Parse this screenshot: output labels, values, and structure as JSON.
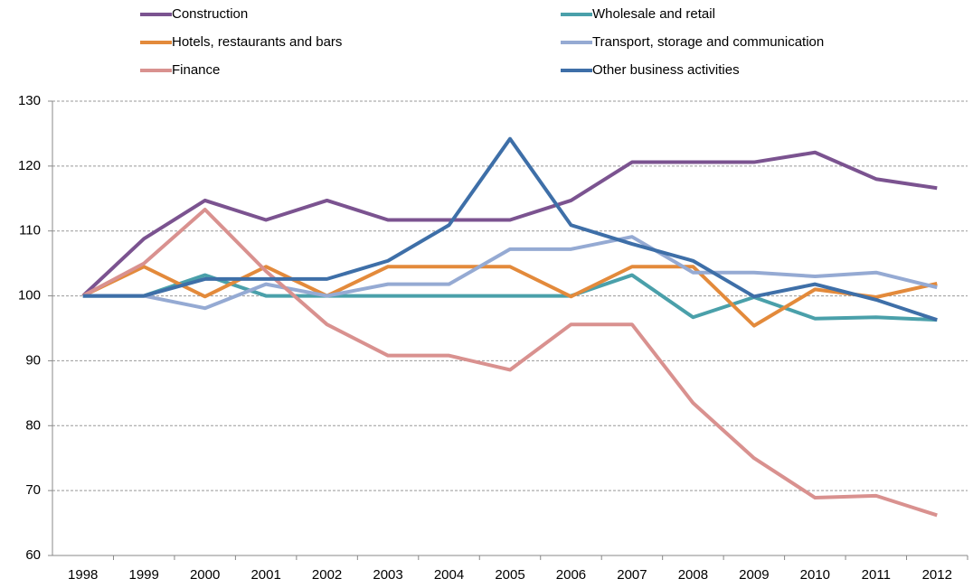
{
  "chart_data": {
    "type": "line",
    "categories": [
      "1998",
      "1999",
      "2000",
      "2001",
      "2002",
      "2003",
      "2004",
      "2005",
      "2006",
      "2007",
      "2008",
      "2009",
      "2010",
      "2011",
      "2012"
    ],
    "series": [
      {
        "name": "Construction",
        "color": "#7b5390",
        "values": [
          100,
          108.8,
          114.7,
          111.7,
          114.7,
          111.7,
          111.7,
          111.7,
          114.7,
          120.6,
          120.6,
          120.6,
          122.1,
          118,
          116.6
        ]
      },
      {
        "name": "Wholesale and retail",
        "color": "#4aa0aa",
        "values": [
          100,
          100,
          103.2,
          100,
          100,
          100,
          100,
          100,
          100,
          103.2,
          96.7,
          99.8,
          96.5,
          96.7,
          96.3
        ]
      },
      {
        "name": "Hotels, restaurants and bars",
        "color": "#e38a3b",
        "values": [
          100,
          104.5,
          99.9,
          104.5,
          100,
          104.5,
          104.5,
          104.5,
          99.9,
          104.5,
          104.5,
          95.4,
          101,
          99.8,
          101.9
        ]
      },
      {
        "name": "Transport, storage and communication",
        "color": "#95aad3",
        "values": [
          100,
          100,
          98.1,
          101.8,
          100,
          101.8,
          101.8,
          107.2,
          107.2,
          109.1,
          103.6,
          103.6,
          103,
          103.6,
          101.3
        ]
      },
      {
        "name": "Finance",
        "color": "#d9918f",
        "values": [
          100,
          105,
          113.3,
          103.8,
          95.6,
          90.8,
          90.8,
          88.6,
          95.6,
          95.6,
          83.5,
          75,
          68.9,
          69.2,
          66.2
        ]
      },
      {
        "name": "Other business activities",
        "color": "#3e6fa8",
        "values": [
          100,
          100,
          102.6,
          102.6,
          102.6,
          105.4,
          110.9,
          124.2,
          110.9,
          108,
          105.4,
          99.9,
          101.8,
          99.4,
          96.3
        ]
      }
    ],
    "ylim": [
      60,
      130
    ],
    "yticks": [
      60,
      70,
      80,
      90,
      100,
      110,
      120,
      130
    ],
    "grid": true
  }
}
